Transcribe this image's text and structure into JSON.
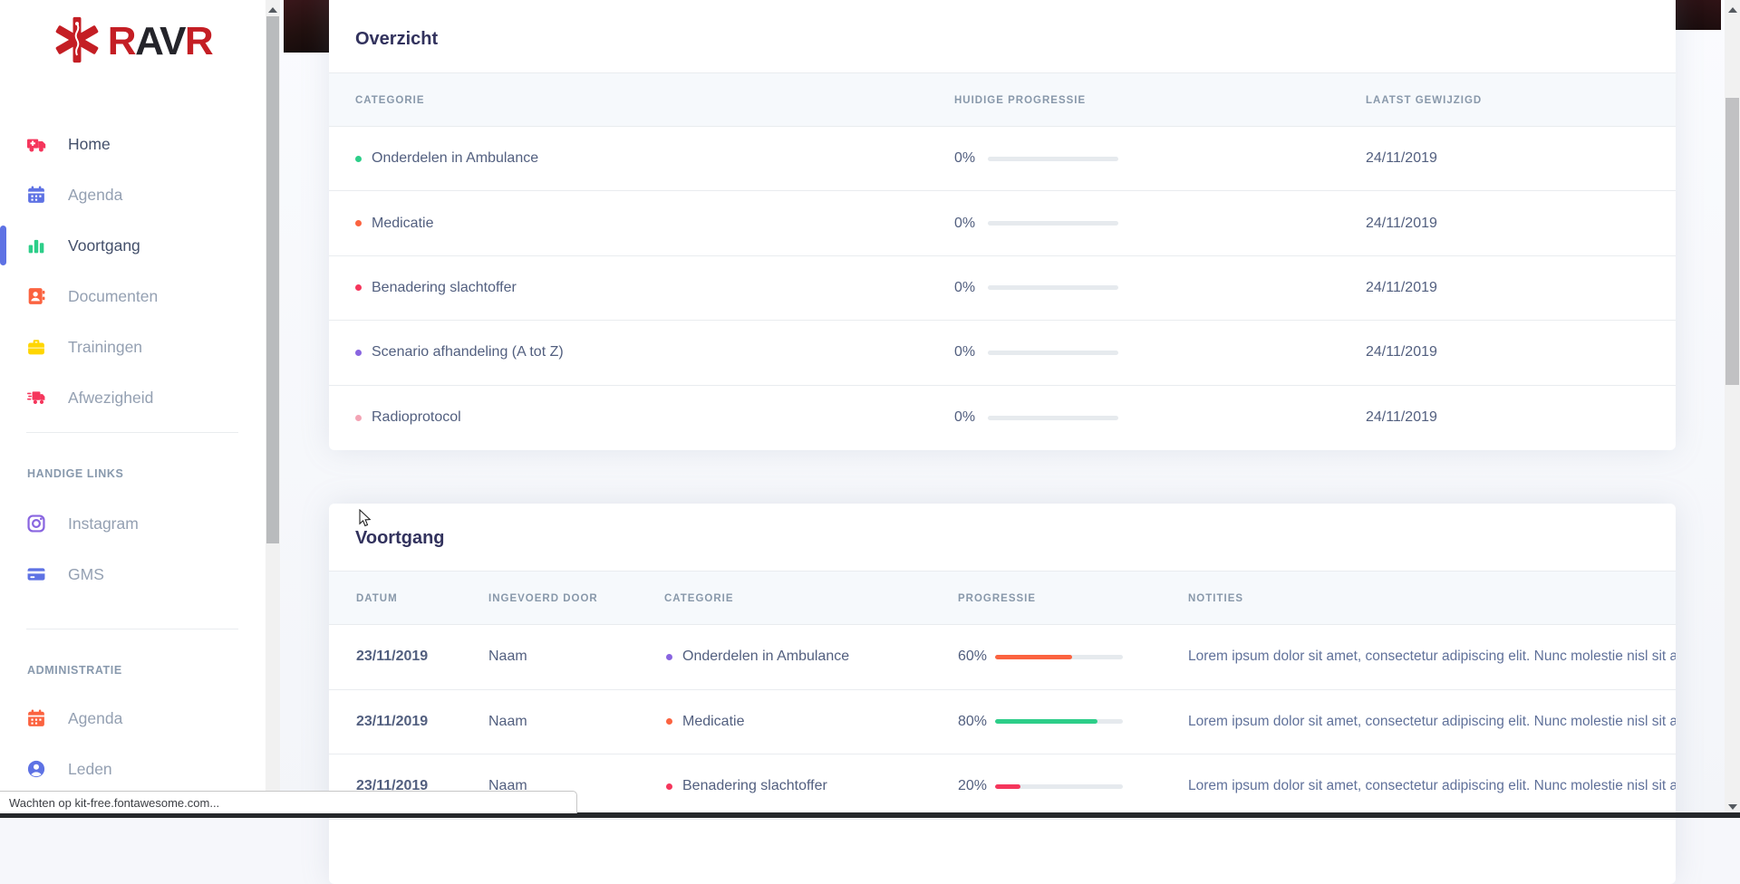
{
  "brand": {
    "parts": [
      {
        "text": "R",
        "color": "#c41e24"
      },
      {
        "text": "AV",
        "color": "#24242a"
      },
      {
        "text": "R",
        "color": "#c41e24"
      }
    ],
    "icon_color": "#c41e24"
  },
  "sidebar": {
    "nav_main": [
      {
        "label": "Home",
        "icon": "ambulance-icon",
        "color": "#f5365c"
      },
      {
        "label": "Agenda",
        "icon": "calendar-icon",
        "color": "#5e72e4"
      },
      {
        "label": "Voortgang",
        "icon": "chart-bar-icon",
        "color": "#2dce89"
      },
      {
        "label": "Documenten",
        "icon": "address-book-icon",
        "color": "#fb6340"
      },
      {
        "label": "Trainingen",
        "icon": "briefcase-icon",
        "color": "#ffd600"
      },
      {
        "label": "Afwezigheid",
        "icon": "truck-fast-icon",
        "color": "#f5365c"
      }
    ],
    "links_header": "HANDIGE LINKS",
    "nav_links": [
      {
        "label": "Instagram",
        "icon": "instagram-icon",
        "color": "#8965e0"
      },
      {
        "label": "GMS",
        "icon": "credit-card-icon",
        "color": "#5e72e4"
      }
    ],
    "admin_header": "ADMINISTRATIE",
    "nav_admin": [
      {
        "label": "Agenda",
        "icon": "calendar-icon",
        "color": "#fb6340"
      },
      {
        "label": "Leden",
        "icon": "user-circle-icon",
        "color": "#5e72e4"
      }
    ]
  },
  "overzicht": {
    "title": "Overzicht",
    "columns": [
      "CATEGORIE",
      "HUIDIGE PROGRESSIE",
      "LAATST GEWIJZIGD"
    ],
    "rows": [
      {
        "category": "Onderdelen in Ambulance",
        "dot_color": "#2dce89",
        "progress_label": "0%",
        "progress": 0,
        "bar_color": "#e6eaee",
        "last_modified": "24/11/2019"
      },
      {
        "category": "Medicatie",
        "dot_color": "#fb6340",
        "progress_label": "0%",
        "progress": 0,
        "bar_color": "#e6eaee",
        "last_modified": "24/11/2019"
      },
      {
        "category": "Benadering slachtoffer",
        "dot_color": "#f5365c",
        "progress_label": "0%",
        "progress": 0,
        "bar_color": "#e6eaee",
        "last_modified": "24/11/2019"
      },
      {
        "category": "Scenario afhandeling (A tot Z)",
        "dot_color": "#8965e0",
        "progress_label": "0%",
        "progress": 0,
        "bar_color": "#e6eaee",
        "last_modified": "24/11/2019"
      },
      {
        "category": "Radioprotocol",
        "dot_color": "#f3a4b5",
        "progress_label": "0%",
        "progress": 0,
        "bar_color": "#e6eaee",
        "last_modified": "24/11/2019"
      }
    ]
  },
  "voortgang": {
    "title": "Voortgang",
    "columns": [
      "DATUM",
      "INGEVOERD DOOR",
      "CATEGORIE",
      "PROGRESSIE",
      "NOTITIES"
    ],
    "rows": [
      {
        "date": "23/11/2019",
        "entered_by": "Naam",
        "category": "Onderdelen in Ambulance",
        "dot_color": "#8965e0",
        "progress_label": "60%",
        "progress": 60,
        "bar_color": "#fb6340",
        "note": "Lorem ipsum dolor sit amet, consectetur adipiscing elit. Nunc molestie nisl sit amet"
      },
      {
        "date": "23/11/2019",
        "entered_by": "Naam",
        "category": "Medicatie",
        "dot_color": "#fb6340",
        "progress_label": "80%",
        "progress": 80,
        "bar_color": "#2dce89",
        "note": "Lorem ipsum dolor sit amet, consectetur adipiscing elit. Nunc molestie nisl sit amet"
      },
      {
        "date": "23/11/2019",
        "entered_by": "Naam",
        "category": "Benadering slachtoffer",
        "dot_color": "#f5365c",
        "progress_label": "20%",
        "progress": 20,
        "bar_color": "#f5365c",
        "note": "Lorem ipsum dolor sit amet, consectetur adipiscing elit. Nunc molestie nisl sit amet"
      }
    ]
  },
  "status_bar": {
    "text": "Wachten op kit-free.fontawesome.com..."
  },
  "colors": {
    "accent": "#5e72e4",
    "heading": "#32325d",
    "body": "#525f7f",
    "muted": "#8898aa"
  }
}
